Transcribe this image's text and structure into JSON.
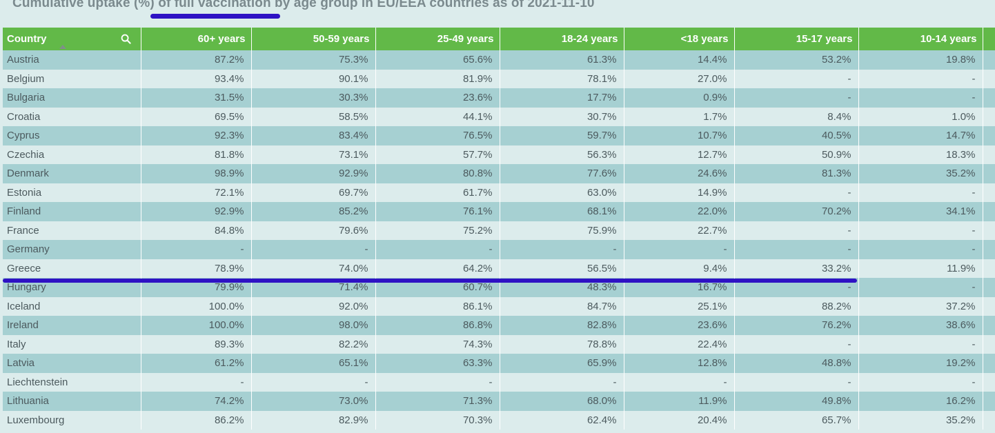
{
  "title": "Cumulative uptake (%) of full vaccination by age group in EU/EEA countries as of 2021-11-10",
  "colors": {
    "header_bg": "#62b948",
    "row_dark": "#a6d0d2",
    "row_light": "#dcecec",
    "annotation": "#2e12c4"
  },
  "columns": [
    "Country",
    "60+ years",
    "50-59 years",
    "25-49 years",
    "18-24 years",
    "<18 years",
    "15-17 years",
    "10-14 years"
  ],
  "rows": [
    [
      "Austria",
      "87.2%",
      "75.3%",
      "65.6%",
      "61.3%",
      "14.4%",
      "53.2%",
      "19.8%"
    ],
    [
      "Belgium",
      "93.4%",
      "90.1%",
      "81.9%",
      "78.1%",
      "27.0%",
      "-",
      "-"
    ],
    [
      "Bulgaria",
      "31.5%",
      "30.3%",
      "23.6%",
      "17.7%",
      "0.9%",
      "-",
      "-"
    ],
    [
      "Croatia",
      "69.5%",
      "58.5%",
      "44.1%",
      "30.7%",
      "1.7%",
      "8.4%",
      "1.0%"
    ],
    [
      "Cyprus",
      "92.3%",
      "83.4%",
      "76.5%",
      "59.7%",
      "10.7%",
      "40.5%",
      "14.7%"
    ],
    [
      "Czechia",
      "81.8%",
      "73.1%",
      "57.7%",
      "56.3%",
      "12.7%",
      "50.9%",
      "18.3%"
    ],
    [
      "Denmark",
      "98.9%",
      "92.9%",
      "80.8%",
      "77.6%",
      "24.6%",
      "81.3%",
      "35.2%"
    ],
    [
      "Estonia",
      "72.1%",
      "69.7%",
      "61.7%",
      "63.0%",
      "14.9%",
      "-",
      "-"
    ],
    [
      "Finland",
      "92.9%",
      "85.2%",
      "76.1%",
      "68.1%",
      "22.0%",
      "70.2%",
      "34.1%"
    ],
    [
      "France",
      "84.8%",
      "79.6%",
      "75.2%",
      "75.9%",
      "22.7%",
      "-",
      "-"
    ],
    [
      "Germany",
      "-",
      "-",
      "-",
      "-",
      "-",
      "-",
      "-"
    ],
    [
      "Greece",
      "78.9%",
      "74.0%",
      "64.2%",
      "56.5%",
      "9.4%",
      "33.2%",
      "11.9%"
    ],
    [
      "Hungary",
      "79.9%",
      "71.4%",
      "60.7%",
      "48.3%",
      "16.7%",
      "-",
      "-"
    ],
    [
      "Iceland",
      "100.0%",
      "92.0%",
      "86.1%",
      "84.7%",
      "25.1%",
      "88.2%",
      "37.2%"
    ],
    [
      "Ireland",
      "100.0%",
      "98.0%",
      "86.8%",
      "82.8%",
      "23.6%",
      "76.2%",
      "38.6%"
    ],
    [
      "Italy",
      "89.3%",
      "82.2%",
      "74.3%",
      "78.8%",
      "22.4%",
      "-",
      "-"
    ],
    [
      "Latvia",
      "61.2%",
      "65.1%",
      "63.3%",
      "65.9%",
      "12.8%",
      "48.8%",
      "19.2%"
    ],
    [
      "Liechtenstein",
      "-",
      "-",
      "-",
      "-",
      "-",
      "-",
      "-"
    ],
    [
      "Lithuania",
      "74.2%",
      "73.0%",
      "71.3%",
      "68.0%",
      "11.9%",
      "49.8%",
      "16.2%"
    ],
    [
      "Luxembourg",
      "86.2%",
      "82.9%",
      "70.3%",
      "62.4%",
      "20.4%",
      "65.7%",
      "35.2%"
    ]
  ]
}
